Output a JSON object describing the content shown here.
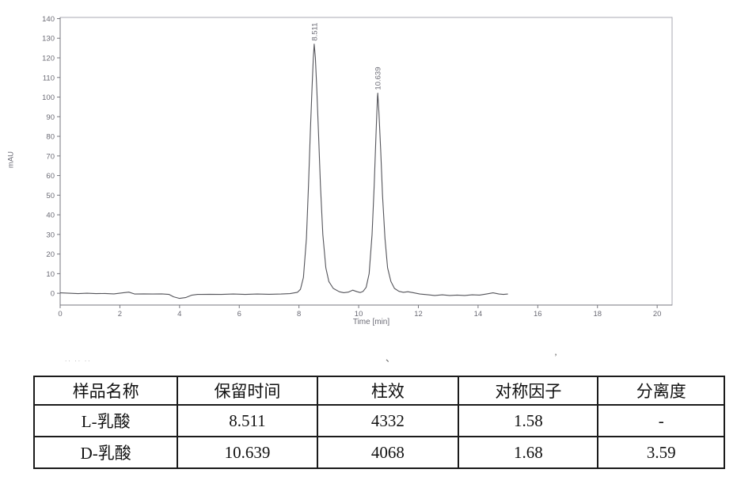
{
  "page": {
    "background": "#ffffff"
  },
  "chart": {
    "frame_color": "#a9a9b3",
    "axis_color": "#77777f",
    "tick_label_color": "#6b6b75",
    "trace_color": "#54545a",
    "peak_label_color": "#6b6b75"
  },
  "chart_data": {
    "type": "line",
    "title": "",
    "xlabel": "Time [min]",
    "ylabel": "mAU",
    "xlim": [
      0,
      20.5
    ],
    "ylim": [
      -6,
      140.6
    ],
    "x_ticks": [
      0,
      2,
      4,
      6,
      8,
      10,
      12,
      14,
      16,
      18,
      20
    ],
    "y_ticks": [
      0,
      10,
      20,
      30,
      40,
      50,
      60,
      70,
      80,
      90,
      100,
      110,
      120,
      130,
      140
    ],
    "grid": false,
    "legend": "none",
    "series": [
      {
        "name": "chromatogram-signal",
        "color": "#54545a",
        "points": [
          [
            0,
            0.2
          ],
          [
            0.3,
            0
          ],
          [
            0.6,
            -0.2
          ],
          [
            0.9,
            0
          ],
          [
            1.2,
            -0.2
          ],
          [
            1.5,
            -0.1
          ],
          [
            1.8,
            -0.3
          ],
          [
            2.1,
            0.2
          ],
          [
            2.3,
            0.6
          ],
          [
            2.5,
            -0.4
          ],
          [
            2.8,
            -0.3
          ],
          [
            3.1,
            -0.4
          ],
          [
            3.4,
            -0.3
          ],
          [
            3.65,
            -0.6
          ],
          [
            3.8,
            -1.8
          ],
          [
            4.0,
            -2.6
          ],
          [
            4.2,
            -2.2
          ],
          [
            4.4,
            -1.0
          ],
          [
            4.6,
            -0.6
          ],
          [
            5.0,
            -0.5
          ],
          [
            5.4,
            -0.6
          ],
          [
            5.8,
            -0.4
          ],
          [
            6.2,
            -0.6
          ],
          [
            6.6,
            -0.4
          ],
          [
            7.0,
            -0.5
          ],
          [
            7.4,
            -0.4
          ],
          [
            7.7,
            -0.2
          ],
          [
            7.95,
            0.5
          ],
          [
            8.05,
            2
          ],
          [
            8.15,
            8
          ],
          [
            8.25,
            28
          ],
          [
            8.32,
            55
          ],
          [
            8.38,
            82
          ],
          [
            8.44,
            105
          ],
          [
            8.48,
            120
          ],
          [
            8.511,
            127
          ],
          [
            8.55,
            120
          ],
          [
            8.6,
            103
          ],
          [
            8.66,
            80
          ],
          [
            8.72,
            55
          ],
          [
            8.8,
            30
          ],
          [
            8.9,
            13
          ],
          [
            9.0,
            6
          ],
          [
            9.15,
            2.5
          ],
          [
            9.35,
            0.8
          ],
          [
            9.5,
            0.3
          ],
          [
            9.65,
            0.6
          ],
          [
            9.8,
            1.6
          ],
          [
            9.95,
            0.8
          ],
          [
            10.05,
            0.4
          ],
          [
            10.15,
            1
          ],
          [
            10.25,
            3
          ],
          [
            10.35,
            10
          ],
          [
            10.45,
            30
          ],
          [
            10.52,
            55
          ],
          [
            10.58,
            80
          ],
          [
            10.63,
            100
          ],
          [
            10.639,
            102
          ],
          [
            10.68,
            92
          ],
          [
            10.74,
            72
          ],
          [
            10.8,
            50
          ],
          [
            10.88,
            28
          ],
          [
            10.97,
            13
          ],
          [
            11.08,
            6
          ],
          [
            11.2,
            2.5
          ],
          [
            11.35,
            1
          ],
          [
            11.5,
            0.5
          ],
          [
            11.65,
            0.8
          ],
          [
            11.85,
            0.2
          ],
          [
            12.05,
            -0.4
          ],
          [
            12.3,
            -0.7
          ],
          [
            12.55,
            -1.1
          ],
          [
            12.8,
            -0.8
          ],
          [
            13.05,
            -1.1
          ],
          [
            13.3,
            -0.9
          ],
          [
            13.55,
            -1.1
          ],
          [
            13.8,
            -0.8
          ],
          [
            14.05,
            -0.9
          ],
          [
            14.3,
            -0.3
          ],
          [
            14.5,
            0.2
          ],
          [
            14.7,
            -0.4
          ],
          [
            14.85,
            -0.6
          ],
          [
            15.0,
            -0.4
          ]
        ]
      }
    ],
    "peak_labels": [
      {
        "text": "8.511",
        "x": 8.511,
        "y": 127
      },
      {
        "text": "10.639",
        "x": 10.639,
        "y": 102
      }
    ]
  },
  "artifacts": {
    "left": "·· ·· ··",
    "mid": "、",
    "right": "’"
  },
  "table": {
    "headers": [
      "样品名称",
      "保留时间",
      "柱效",
      "对称因子",
      "分离度"
    ],
    "rows": [
      [
        "L-乳酸",
        "8.511",
        "4332",
        "1.58",
        "-"
      ],
      [
        "D-乳酸",
        "10.639",
        "4068",
        "1.68",
        "3.59"
      ]
    ]
  }
}
